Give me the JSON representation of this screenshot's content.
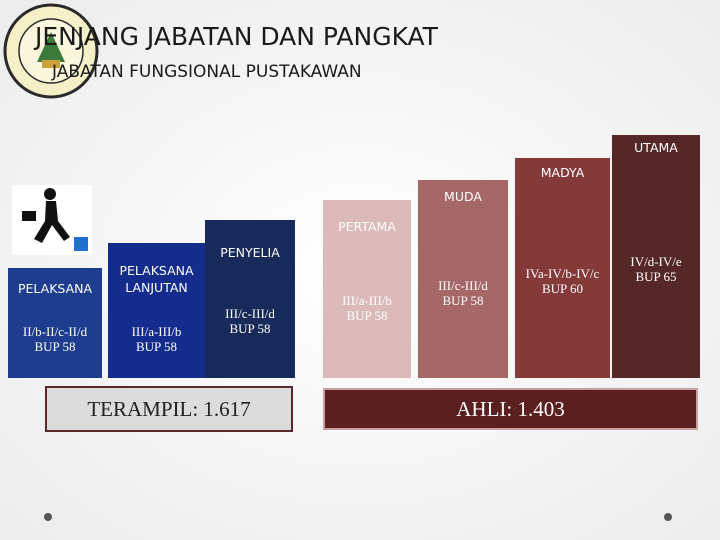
{
  "header": {
    "title": "JENJANG JABATAN DAN PANGKAT",
    "subtitle": "JABATAN FUNGSIONAL PUSTAKAWAN"
  },
  "columns": [
    {
      "name": "PELAKSANA",
      "rank": "II/b-II/c-II/d",
      "retirement": "BUP 58"
    },
    {
      "name": "PELAKSANA LANJUTAN",
      "rank": "III/a-III/b",
      "retirement": "BUP 58"
    },
    {
      "name": "PENYELIA",
      "rank": "III/c-III/d",
      "retirement": "BUP 58"
    },
    {
      "name": "PERTAMA",
      "rank": "III/a-III/b",
      "retirement": "BUP 58"
    },
    {
      "name": "MUDA",
      "rank": "III/c-III/d",
      "retirement": "BUP 58"
    },
    {
      "name": "MADYA",
      "rank": "IVa-IV/b-IV/c",
      "retirement": "BUP 60"
    },
    {
      "name": "UTAMA",
      "rank": "IV/d-IV/e",
      "retirement": "BUP 65"
    }
  ],
  "groups": [
    {
      "label": "TERAMPIL: 1.617"
    },
    {
      "label": "AHLI: 1.403"
    }
  ]
}
